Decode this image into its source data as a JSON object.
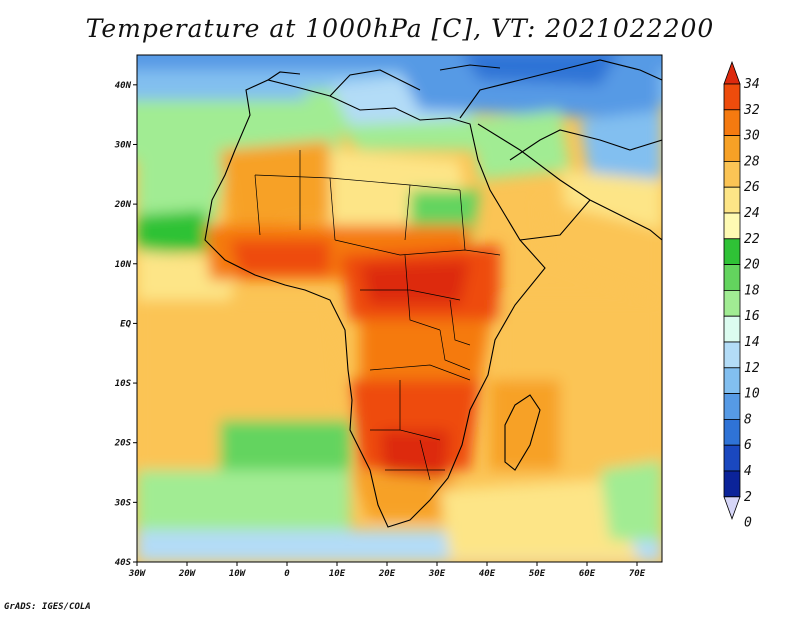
{
  "title": "Temperature at 1000hPa [C], VT: 2021022200",
  "credit": "GrADS: IGES/COLA",
  "map": {
    "lon_range": [
      -30,
      75
    ],
    "lat_range": [
      -40,
      45
    ],
    "x_ticks": [
      "30W",
      "20W",
      "10W",
      "0",
      "10E",
      "20E",
      "30E",
      "40E",
      "50E",
      "60E",
      "70E"
    ],
    "y_ticks": [
      "40N",
      "30N",
      "20N",
      "10N",
      "EQ",
      "10S",
      "20S",
      "30S",
      "40S"
    ]
  },
  "colorbar": {
    "labels": [
      "34",
      "32",
      "30",
      "28",
      "26",
      "24",
      "22",
      "20",
      "18",
      "16",
      "14",
      "12",
      "10",
      "8",
      "6",
      "4",
      "2",
      "0"
    ],
    "colors": [
      "#dd2a0e",
      "#ee4c0c",
      "#f57a10",
      "#f7a126",
      "#fbc455",
      "#fde587",
      "#fefab3",
      "#2fc236",
      "#63d45e",
      "#a1ec93",
      "#dcfcf0",
      "#b3dcf7",
      "#82bff0",
      "#569ae5",
      "#2f73d6",
      "#1a48bf",
      "#0b2399",
      "#0a0d6a"
    ]
  }
}
